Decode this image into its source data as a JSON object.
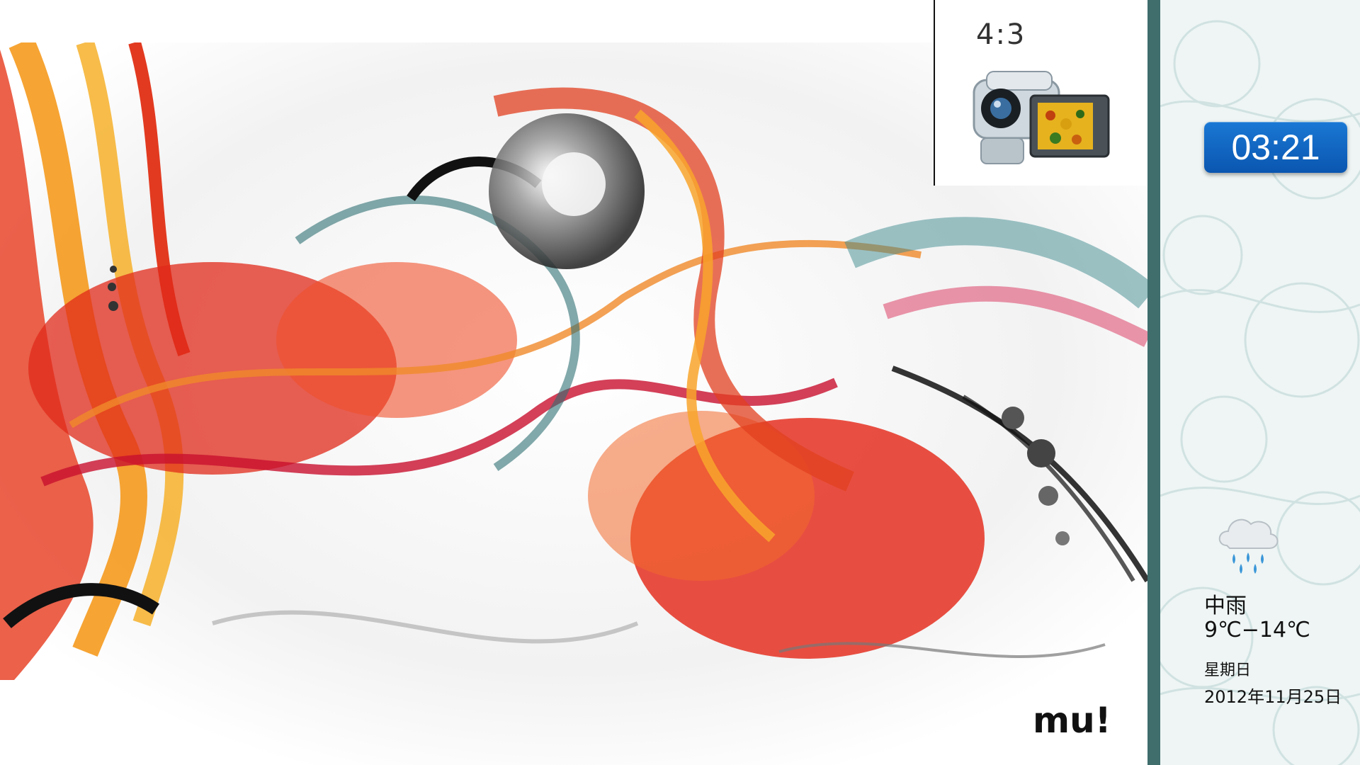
{
  "main": {
    "aspect_ratio_label": "4:3",
    "camera_icon": "camcorder-icon",
    "artwork_logo": "mu!"
  },
  "sidebar": {
    "clock": "03:21",
    "weather": {
      "icon": "rain-cloud-icon",
      "condition": "中雨",
      "temperature": "9℃−14℃",
      "weekday": "星期日",
      "date": "2012年11月25日"
    }
  },
  "colors": {
    "sidebar_border": "#3f6e6d",
    "clock_bg": "#0a56b0",
    "art_red": "#e02a1a",
    "art_orange": "#f59a1e",
    "art_teal": "#2f6f73"
  }
}
